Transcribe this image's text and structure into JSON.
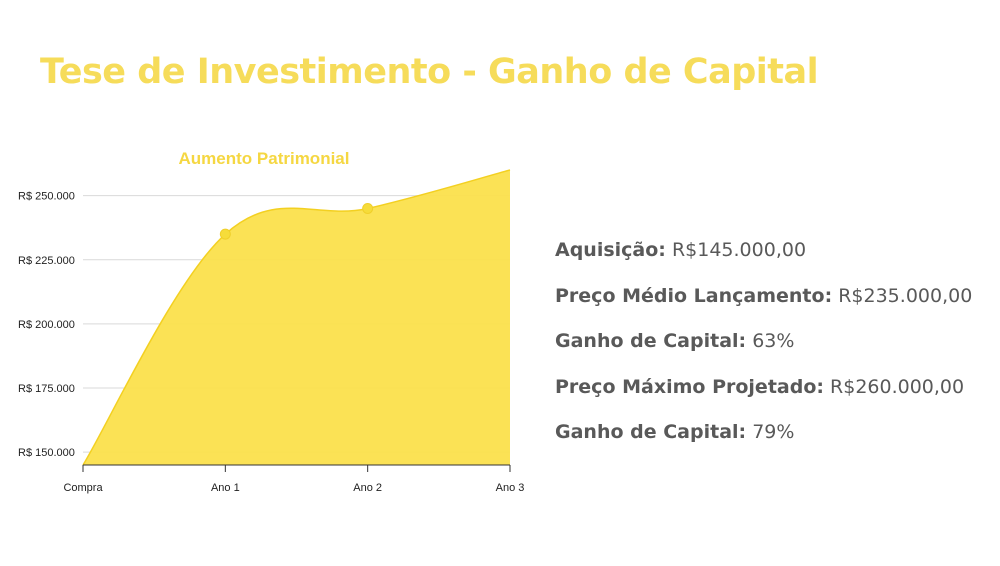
{
  "page": {
    "title": "Tese de Investimento - Ganho de Capital"
  },
  "stats": [
    {
      "label": "Aquisição:",
      "value": "R$145.000,00"
    },
    {
      "label": "Preço Médio Lançamento:",
      "value": "R$235.000,00"
    },
    {
      "label": "Ganho de Capital:",
      "value": "63%"
    },
    {
      "label": "Preço Máximo Projetado:",
      "value": "R$260.000,00"
    },
    {
      "label": "Ganho de Capital:",
      "value": "79%"
    }
  ],
  "chart_data": {
    "type": "area",
    "title": "Aumento Patrimonial",
    "categories": [
      "Compra",
      "Ano 1",
      "Ano 2",
      "Ano 3"
    ],
    "series": [
      {
        "values": [
          145000,
          235000,
          245000,
          260000
        ],
        "color": "#f9dc3f"
      }
    ],
    "ylim": [
      145000,
      260000
    ],
    "yticks": [
      150000,
      175000,
      200000,
      225000,
      250000
    ],
    "ytick_labels": [
      "R$ 150.000",
      "R$ 175.000",
      "R$ 200.000",
      "R$ 225.000",
      "R$ 250.000"
    ],
    "grid": true,
    "title_color": "#f5d742",
    "fill_color": "#fbe04c"
  }
}
